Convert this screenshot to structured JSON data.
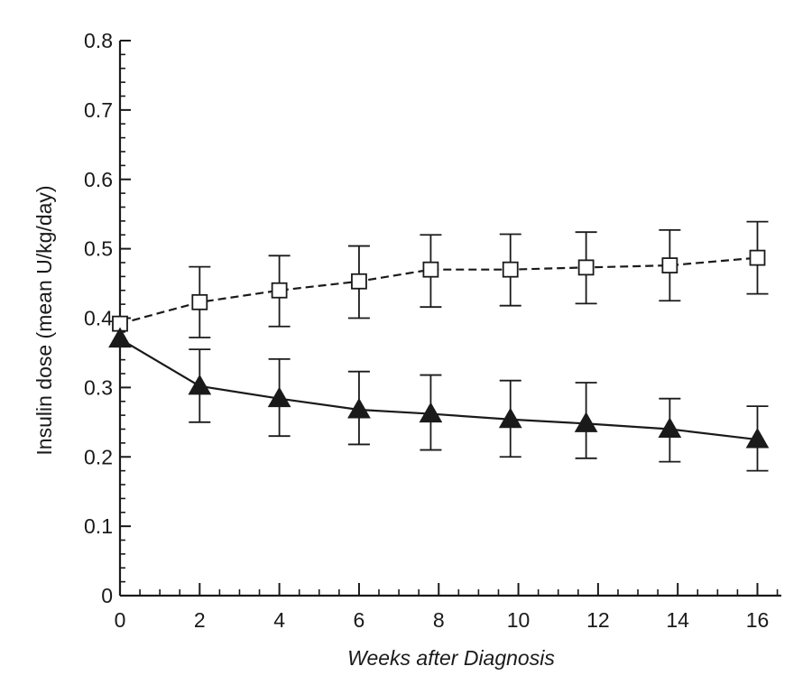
{
  "chart_data": {
    "type": "line",
    "title": "",
    "xlabel": "Weeks after Diagnosis",
    "ylabel": "Insulin dose (mean U/kg/day)",
    "xlim": [
      0,
      16.6
    ],
    "ylim": [
      0,
      0.8
    ],
    "xticks": [
      0,
      2,
      4,
      6,
      8,
      10,
      12,
      14,
      16
    ],
    "xtick_labels": [
      "0",
      "2",
      "4",
      "6",
      "8",
      "10",
      "12",
      "14",
      "16"
    ],
    "yticks": [
      0,
      0.1,
      0.2,
      0.3,
      0.4,
      0.5,
      0.6,
      0.7,
      0.8
    ],
    "ytick_labels": [
      "0",
      "0.1",
      "0.2",
      "0.3",
      "0.4",
      "0.5",
      "0.6",
      "0.7",
      "0.8"
    ],
    "grid": false,
    "legend": "none",
    "series": [
      {
        "marker": "open-square",
        "line_style": "dashed",
        "color": "#1a1a1a",
        "x": [
          0,
          2,
          4,
          6,
          7.8,
          9.8,
          11.7,
          13.8,
          16
        ],
        "y": [
          0.392,
          0.423,
          0.44,
          0.453,
          0.47,
          0.47,
          0.473,
          0.476,
          0.487
        ],
        "error_low": [
          0.392,
          0.372,
          0.388,
          0.4,
          0.416,
          0.418,
          0.421,
          0.425,
          0.435
        ],
        "error_high": [
          0.392,
          0.474,
          0.49,
          0.504,
          0.52,
          0.521,
          0.524,
          0.527,
          0.539
        ]
      },
      {
        "marker": "filled-triangle",
        "line_style": "solid",
        "color": "#1a1a1a",
        "x": [
          0,
          2,
          4,
          6,
          7.8,
          9.8,
          11.7,
          13.8,
          16
        ],
        "y": [
          0.37,
          0.302,
          0.284,
          0.268,
          0.262,
          0.254,
          0.248,
          0.24,
          0.225
        ],
        "error_low": [
          0.37,
          0.25,
          0.23,
          0.218,
          0.21,
          0.2,
          0.198,
          0.193,
          0.18
        ],
        "error_high": [
          0.37,
          0.355,
          0.341,
          0.323,
          0.318,
          0.31,
          0.307,
          0.284,
          0.273
        ]
      }
    ]
  }
}
